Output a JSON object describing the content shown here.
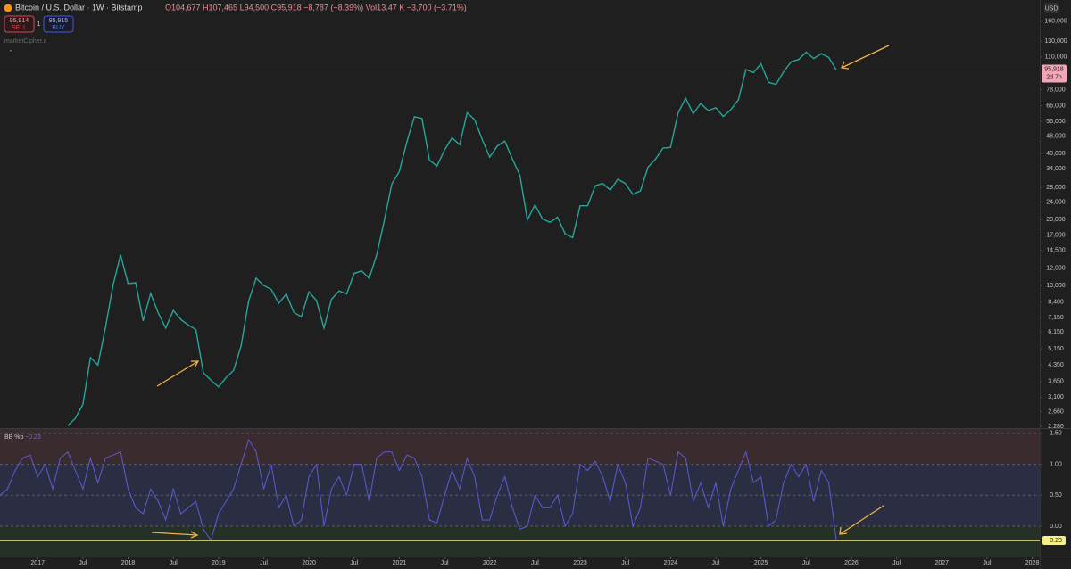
{
  "header": {
    "symbol": "Bitcoin / U.S. Dollar · 1W · Bitstamp",
    "ohlc": "O104,677 H107,465 L94,500 C95,918 −8,787 (−8.39%) Vol13.47 K −3,700 (−3.71%)",
    "sell_price": "95,914",
    "sell": "SELL",
    "spread": "1",
    "buy_price": "95,915",
    "buy": "BUY",
    "indicator_name": "marketCipher.a",
    "currency": "USD"
  },
  "chart_data": [
    {
      "type": "line",
      "log_scale": true,
      "color": "#26a69a",
      "xlim": [
        "2016-08",
        "2028-02"
      ],
      "xticks": [
        {
          "value": "2017-01",
          "label": "2017"
        },
        {
          "value": "2017-07",
          "label": "Jul"
        },
        {
          "value": "2018-01",
          "label": "2018"
        },
        {
          "value": "2018-07",
          "label": "Jul"
        },
        {
          "value": "2019-01",
          "label": "2019"
        },
        {
          "value": "2019-07",
          "label": "Jul"
        },
        {
          "value": "2020-01",
          "label": "2020"
        },
        {
          "value": "2020-07",
          "label": "Jul"
        },
        {
          "value": "2021-01",
          "label": "2021"
        },
        {
          "value": "2021-07",
          "label": "Jul"
        },
        {
          "value": "2022-01",
          "label": "2022"
        },
        {
          "value": "2022-07",
          "label": "Jul"
        },
        {
          "value": "2023-01",
          "label": "2023"
        },
        {
          "value": "2023-07",
          "label": "Jul"
        },
        {
          "value": "2024-01",
          "label": "2024"
        },
        {
          "value": "2024-07",
          "label": "Jul"
        },
        {
          "value": "2025-01",
          "label": "2025"
        },
        {
          "value": "2025-07",
          "label": "Jul"
        },
        {
          "value": "2026-01",
          "label": "2026"
        },
        {
          "value": "2026-07",
          "label": "Jul"
        },
        {
          "value": "2027-01",
          "label": "2027"
        },
        {
          "value": "2027-07",
          "label": "Jul"
        },
        {
          "value": "2028-01",
          "label": "2028"
        }
      ],
      "ylim": [
        2240,
        200000
      ],
      "yticks": [
        {
          "value": 160000,
          "label": "160,000"
        },
        {
          "value": 130000,
          "label": "130,000"
        },
        {
          "value": 110000,
          "label": "110,000"
        },
        {
          "value": 78000,
          "label": "78,000"
        },
        {
          "value": 66000,
          "label": "66,000"
        },
        {
          "value": 56000,
          "label": "56,000"
        },
        {
          "value": 48000,
          "label": "48,000"
        },
        {
          "value": 40000,
          "label": "40,000"
        },
        {
          "value": 34000,
          "label": "34,000"
        },
        {
          "value": 28000,
          "label": "28,000"
        },
        {
          "value": 24000,
          "label": "24,000"
        },
        {
          "value": 20000,
          "label": "20,000"
        },
        {
          "value": 17000,
          "label": "17,000"
        },
        {
          "value": 14500,
          "label": "14,500"
        },
        {
          "value": 12000,
          "label": "12,000"
        },
        {
          "value": 10000,
          "label": "10,000"
        },
        {
          "value": 8400,
          "label": "8,400"
        },
        {
          "value": 7150,
          "label": "7,150"
        },
        {
          "value": 6150,
          "label": "6,150"
        },
        {
          "value": 5150,
          "label": "5,150"
        },
        {
          "value": 4350,
          "label": "4,350"
        },
        {
          "value": 3650,
          "label": "3,650"
        },
        {
          "value": 3100,
          "label": "3,100"
        },
        {
          "value": 2660,
          "label": "2,660"
        },
        {
          "value": 2280,
          "label": "2,280"
        }
      ],
      "grid": false,
      "last_price": {
        "value": 95918,
        "label": "95,918",
        "countdown": "2d 7h"
      },
      "x": [
        "2017-05",
        "2017-06",
        "2017-07",
        "2017-08",
        "2017-09",
        "2017-10",
        "2017-11",
        "2017-12",
        "2018-01",
        "2018-02",
        "2018-03",
        "2018-04",
        "2018-05",
        "2018-06",
        "2018-07",
        "2018-08",
        "2018-09",
        "2018-10",
        "2018-11",
        "2018-12",
        "2019-01",
        "2019-02",
        "2019-03",
        "2019-04",
        "2019-05",
        "2019-06",
        "2019-07",
        "2019-08",
        "2019-09",
        "2019-10",
        "2019-11",
        "2019-12",
        "2020-01",
        "2020-02",
        "2020-03",
        "2020-04",
        "2020-05",
        "2020-06",
        "2020-07",
        "2020-08",
        "2020-09",
        "2020-10",
        "2020-11",
        "2020-12",
        "2021-01",
        "2021-02",
        "2021-03",
        "2021-04",
        "2021-05",
        "2021-06",
        "2021-07",
        "2021-08",
        "2021-09",
        "2021-10",
        "2021-11",
        "2021-12",
        "2022-01",
        "2022-02",
        "2022-03",
        "2022-04",
        "2022-05",
        "2022-06",
        "2022-07",
        "2022-08",
        "2022-09",
        "2022-10",
        "2022-11",
        "2022-12",
        "2023-01",
        "2023-02",
        "2023-03",
        "2023-04",
        "2023-05",
        "2023-06",
        "2023-07",
        "2023-08",
        "2023-09",
        "2023-10",
        "2023-11",
        "2023-12",
        "2024-01",
        "2024-02",
        "2024-03",
        "2024-04",
        "2024-05",
        "2024-06",
        "2024-07",
        "2024-08",
        "2024-09",
        "2024-10",
        "2024-11",
        "2024-12",
        "2025-01",
        "2025-02",
        "2025-03",
        "2025-04",
        "2025-05",
        "2025-06",
        "2025-07",
        "2025-08",
        "2025-09",
        "2025-10",
        "2025-11"
      ],
      "values": [
        2300,
        2480,
        2870,
        4700,
        4340,
        6450,
        10000,
        13800,
        10200,
        10300,
        6900,
        9200,
        7500,
        6400,
        7700,
        7000,
        6600,
        6300,
        4000,
        3700,
        3450,
        3800,
        4100,
        5300,
        8500,
        10800,
        10000,
        9600,
        8300,
        9150,
        7550,
        7200,
        9350,
        8550,
        6400,
        8650,
        9450,
        9150,
        11350,
        11650,
        10780,
        13800,
        19700,
        29000,
        33100,
        45200,
        58800,
        57700,
        37300,
        35000,
        41500,
        47100,
        43800,
        61300,
        57000,
        46300,
        38500,
        43200,
        45500,
        37700,
        31800,
        19900,
        23300,
        20100,
        19400,
        20500,
        17200,
        16500,
        23100,
        23100,
        28500,
        29200,
        27200,
        30500,
        29200,
        26000,
        27000,
        34600,
        37700,
        42300,
        42600,
        61200,
        71300,
        60700,
        67500,
        62700,
        64600,
        58900,
        63300,
        70200,
        96400,
        93400,
        102400,
        84300,
        82500,
        94200,
        104600,
        107100,
        115700,
        108200,
        114000,
        109500,
        95918
      ]
    },
    {
      "type": "line",
      "title": "BB %b",
      "color": "#5b5bd6",
      "xlim": [
        "2016-08",
        "2028-02"
      ],
      "ylim": [
        -0.49,
        1.57
      ],
      "yticks": [
        {
          "value": 1.5,
          "label": "1.50"
        },
        {
          "value": 1,
          "label": "1.00"
        },
        {
          "value": 0.5,
          "label": "0.50"
        },
        {
          "value": 0,
          "label": "0.00"
        }
      ],
      "last_value": {
        "value": -0.23,
        "label": "−0.23"
      },
      "x": [
        "2016-08",
        "2016-09",
        "2016-10",
        "2016-11",
        "2016-12",
        "2017-01",
        "2017-02",
        "2017-03",
        "2017-04",
        "2017-05",
        "2017-06",
        "2017-07",
        "2017-08",
        "2017-09",
        "2017-10",
        "2017-11",
        "2017-12",
        "2018-01",
        "2018-02",
        "2018-03",
        "2018-04",
        "2018-05",
        "2018-06",
        "2018-07",
        "2018-08",
        "2018-09",
        "2018-10",
        "2018-11",
        "2018-12",
        "2019-01",
        "2019-02",
        "2019-03",
        "2019-04",
        "2019-05",
        "2019-06",
        "2019-07",
        "2019-08",
        "2019-09",
        "2019-10",
        "2019-11",
        "2019-12",
        "2020-01",
        "2020-02",
        "2020-03",
        "2020-04",
        "2020-05",
        "2020-06",
        "2020-07",
        "2020-08",
        "2020-09",
        "2020-10",
        "2020-11",
        "2020-12",
        "2021-01",
        "2021-02",
        "2021-03",
        "2021-04",
        "2021-05",
        "2021-06",
        "2021-07",
        "2021-08",
        "2021-09",
        "2021-10",
        "2021-11",
        "2021-12",
        "2022-01",
        "2022-02",
        "2022-03",
        "2022-04",
        "2022-05",
        "2022-06",
        "2022-07",
        "2022-08",
        "2022-09",
        "2022-10",
        "2022-11",
        "2022-12",
        "2023-01",
        "2023-02",
        "2023-03",
        "2023-04",
        "2023-05",
        "2023-06",
        "2023-07",
        "2023-08",
        "2023-09",
        "2023-10",
        "2023-11",
        "2023-12",
        "2024-01",
        "2024-02",
        "2024-03",
        "2024-04",
        "2024-05",
        "2024-06",
        "2024-07",
        "2024-08",
        "2024-09",
        "2024-10",
        "2024-11",
        "2024-12",
        "2025-01",
        "2025-02",
        "2025-03",
        "2025-04",
        "2025-05",
        "2025-06",
        "2025-07",
        "2025-08",
        "2025-09",
        "2025-10",
        "2025-11"
      ],
      "values": [
        0.5,
        0.6,
        0.9,
        1.1,
        1.15,
        0.8,
        1.0,
        0.6,
        1.1,
        1.2,
        0.9,
        0.6,
        1.1,
        0.7,
        1.1,
        1.15,
        1.2,
        0.6,
        0.3,
        0.2,
        0.6,
        0.4,
        0.1,
        0.6,
        0.2,
        0.3,
        0.4,
        -0.05,
        -0.23,
        0.2,
        0.4,
        0.6,
        1.0,
        1.4,
        1.2,
        0.6,
        1.0,
        0.3,
        0.5,
        0.0,
        0.1,
        0.8,
        1.0,
        0.0,
        0.6,
        0.8,
        0.5,
        1.0,
        1.0,
        0.4,
        1.1,
        1.2,
        1.2,
        0.9,
        1.15,
        1.1,
        0.8,
        0.1,
        0.05,
        0.5,
        0.9,
        0.6,
        1.1,
        0.8,
        0.1,
        0.1,
        0.5,
        0.8,
        0.3,
        -0.05,
        0.0,
        0.5,
        0.3,
        0.3,
        0.5,
        0.0,
        0.2,
        1.0,
        0.9,
        1.05,
        0.8,
        0.4,
        1.0,
        0.7,
        0.0,
        0.3,
        1.1,
        1.05,
        1.0,
        0.5,
        1.2,
        1.1,
        0.4,
        0.7,
        0.3,
        0.7,
        0.0,
        0.6,
        0.9,
        1.2,
        0.7,
        0.8,
        0.0,
        0.1,
        0.7,
        1.0,
        0.8,
        1.0,
        0.4,
        0.9,
        0.7,
        -0.23
      ]
    }
  ]
}
